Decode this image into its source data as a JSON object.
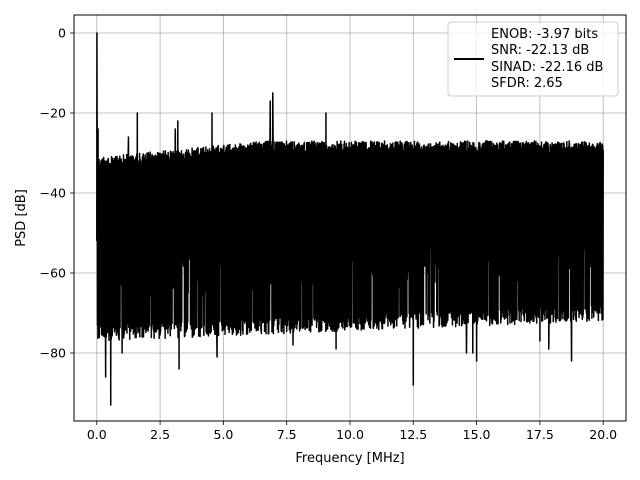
{
  "chart_data": {
    "type": "line",
    "xlabel": "Frequency [MHz]",
    "ylabel": "PSD [dB]",
    "xlim": [
      -0.9,
      20.9
    ],
    "ylim": [
      -97,
      4.5
    ],
    "xticks": [
      0.0,
      2.5,
      5.0,
      7.5,
      10.0,
      12.5,
      15.0,
      17.5,
      20.0
    ],
    "xtick_labels": [
      "0.0",
      "2.5",
      "5.0",
      "7.5",
      "10.0",
      "12.5",
      "15.0",
      "17.5",
      "20.0"
    ],
    "yticks": [
      0,
      -20,
      -40,
      -60,
      -80
    ],
    "ytick_labels": [
      "0",
      "−20",
      "−40",
      "−60",
      "−80"
    ],
    "grid": true,
    "legend_position": "top-right",
    "series": [
      {
        "name": "ENOB: -3.97 bits\nSNR: -22.13 dB\nSINAD: -22.16 dB\nSFDR: 2.65",
        "color": "#000000",
        "noise_band_top_start": -31,
        "noise_band_top_end": -27,
        "noise_band_bottom_start": -75,
        "noise_band_bottom_end": -70,
        "peaks": [
          {
            "x": 0.0,
            "y": 0
          },
          {
            "x": 0.05,
            "y": -24
          },
          {
            "x": 0.35,
            "y": -86
          },
          {
            "x": 0.55,
            "y": -93
          },
          {
            "x": 1.0,
            "y": -80
          },
          {
            "x": 1.25,
            "y": -26
          },
          {
            "x": 1.6,
            "y": -20
          },
          {
            "x": 3.25,
            "y": -84
          },
          {
            "x": 3.1,
            "y": -24
          },
          {
            "x": 3.2,
            "y": -22
          },
          {
            "x": 4.55,
            "y": -20
          },
          {
            "x": 4.75,
            "y": -81
          },
          {
            "x": 6.85,
            "y": -17
          },
          {
            "x": 6.95,
            "y": -15
          },
          {
            "x": 7.75,
            "y": -78
          },
          {
            "x": 9.05,
            "y": -20
          },
          {
            "x": 9.45,
            "y": -79
          },
          {
            "x": 12.5,
            "y": -88
          },
          {
            "x": 14.6,
            "y": -80
          },
          {
            "x": 14.85,
            "y": -80
          },
          {
            "x": 15.0,
            "y": -82
          },
          {
            "x": 17.5,
            "y": -77
          },
          {
            "x": 17.85,
            "y": -79
          },
          {
            "x": 18.75,
            "y": -82
          }
        ]
      }
    ],
    "legend_lines": [
      "ENOB: -3.97 bits",
      "SNR: -22.13 dB",
      "SINAD: -22.16 dB",
      "SFDR: 2.65"
    ]
  }
}
